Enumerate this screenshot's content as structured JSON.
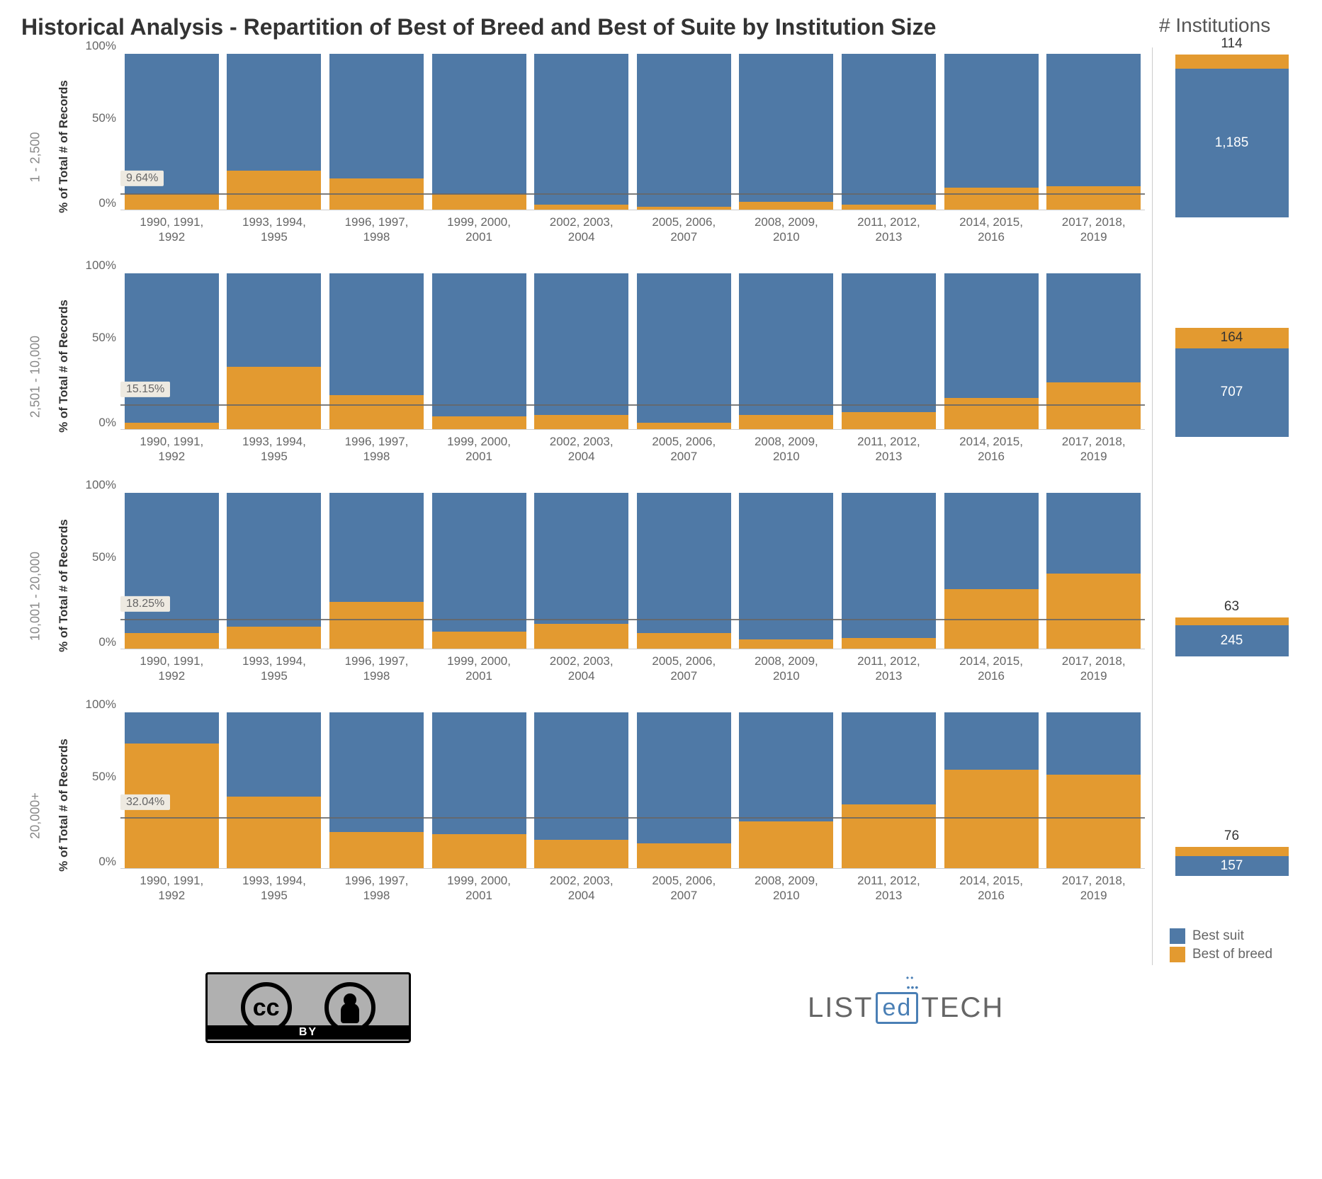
{
  "title": "Historical Analysis - Repartition of Best of Breed and Best of Suite by Institution Size",
  "side_title": "# Institutions",
  "colors": {
    "suit": "#4f79a6",
    "breed": "#e39a30",
    "ref_line": "#666666",
    "grid": "#dddddd",
    "text": "#666666",
    "title": "#333333",
    "background": "#ffffff",
    "badge_bg": "#eeeae1"
  },
  "y_axis": {
    "label": "% of Total # of Records",
    "ticks": [
      "0%",
      "50%",
      "100%"
    ],
    "tick_values": [
      0,
      50,
      100
    ]
  },
  "x_categories": [
    "1990, 1991,\n1992",
    "1993, 1994,\n1995",
    "1996, 1997,\n1998",
    "1999, 2000,\n2001",
    "2002, 2003,\n2004",
    "2005, 2006,\n2007",
    "2008, 2009,\n2010",
    "2011, 2012,\n2013",
    "2014, 2015,\n2016",
    "2017, 2018,\n2019"
  ],
  "panels": [
    {
      "label": "1 - 2,500",
      "ref_pct": 9.64,
      "ref_label": "9.64%",
      "breed_pct": [
        10,
        25,
        20,
        10,
        3,
        2,
        5,
        3,
        14,
        15
      ],
      "side": {
        "height_pct": 100,
        "breed": 114,
        "suit": 1185
      }
    },
    {
      "label": "2,501 - 10,000",
      "ref_pct": 15.15,
      "ref_label": "15.15%",
      "breed_pct": [
        4,
        40,
        22,
        8,
        9,
        4,
        9,
        11,
        20,
        30
      ],
      "side": {
        "height_pct": 67,
        "breed": 164,
        "suit": 707
      }
    },
    {
      "label": "10,001 - 20,000",
      "ref_pct": 18.25,
      "ref_label": "18.25%",
      "breed_pct": [
        10,
        14,
        30,
        11,
        16,
        10,
        6,
        7,
        38,
        48
      ],
      "side": {
        "height_pct": 24,
        "breed": 63,
        "suit": 245
      }
    },
    {
      "label": "20,000+",
      "ref_pct": 32.04,
      "ref_label": "32.04%",
      "breed_pct": [
        80,
        46,
        23,
        22,
        18,
        16,
        30,
        41,
        63,
        60
      ],
      "side": {
        "height_pct": 18,
        "breed": 76,
        "suit": 157
      }
    }
  ],
  "legend": {
    "suit": "Best suit",
    "breed": "Best of breed"
  },
  "footer": {
    "cc_by": "BY",
    "brand_left": "LIST",
    "brand_mid": "ed",
    "brand_right": "TECH"
  }
}
